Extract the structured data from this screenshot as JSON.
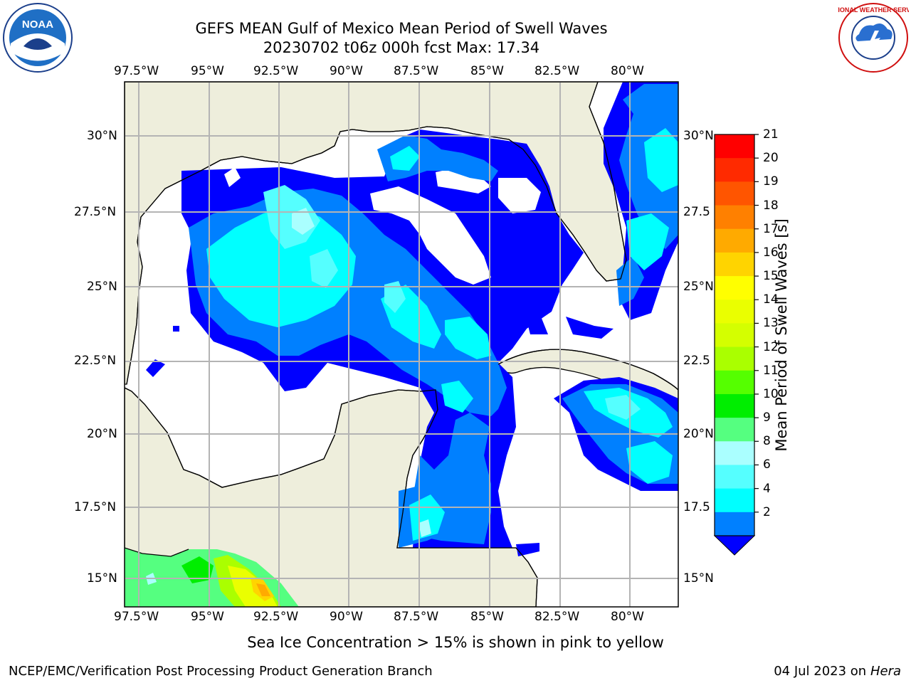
{
  "header": {
    "title_line1": "GEFS MEAN Gulf of Mexico Mean Period of Swell Waves",
    "title_line2": "20230702 t06z 000h fcst   Max: 17.34"
  },
  "logos": {
    "left": {
      "icon": "noaa-logo",
      "text": "NOAA"
    },
    "right": {
      "icon": "national-weather-service-logo",
      "text": "NATIONAL WEATHER SERVICE"
    }
  },
  "map": {
    "lon_labels": [
      "97.5°W",
      "95°W",
      "92.5°W",
      "90°W",
      "87.5°W",
      "85°W",
      "82.5°W",
      "80°W"
    ],
    "lat_labels_left": [
      "30°N",
      "27.5°N",
      "25°N",
      "22.5°N",
      "20°N",
      "17.5°N",
      "15°N"
    ],
    "lat_labels_right": [
      "30°N",
      "27.5",
      "25°N",
      "22.5",
      "20°N",
      "17.5",
      "15°N"
    ],
    "land_color": "#eeeedc",
    "grid_color": "#b4b4b4"
  },
  "colorbar": {
    "label": "Mean Period of Swell Waves [s]",
    "ticks": [
      "21",
      "20",
      "19",
      "18",
      "17",
      "16",
      "15",
      "14",
      "13",
      "12",
      "11",
      "10",
      "9",
      "8",
      "6",
      "4",
      "2"
    ],
    "colors_top_to_bottom": [
      "#ff0000",
      "#ff2a00",
      "#ff5500",
      "#ff8000",
      "#ffaa00",
      "#ffd400",
      "#ffff00",
      "#eaff00",
      "#d4ff00",
      "#aaff00",
      "#55ff00",
      "#00ee00",
      "#55ff80",
      "#aaffff",
      "#55ffff",
      "#00ffff",
      "#0080ff"
    ],
    "under_color": "#0000ff"
  },
  "footer": {
    "ice_note": "Sea Ice Concentration > 15% is shown in pink to yellow",
    "credit": "NCEP/EMC/Verification Post Processing Product Generation Branch",
    "date_prefix": "04 Jul 2023 on ",
    "machine": "Hera"
  }
}
